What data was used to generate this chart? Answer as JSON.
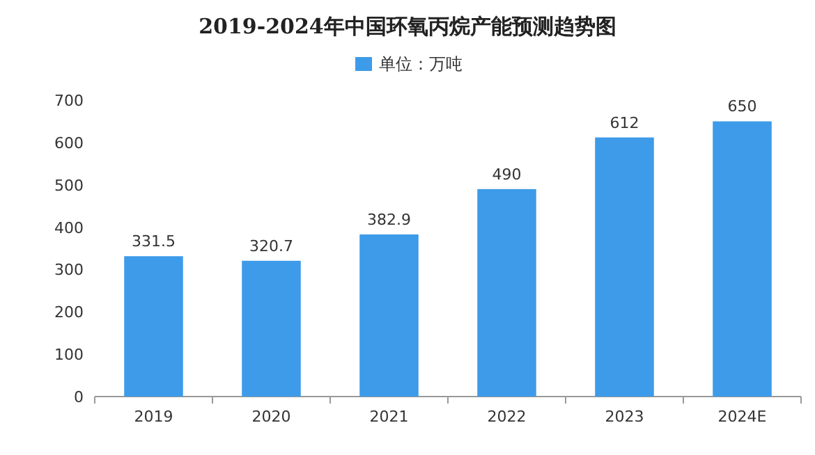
{
  "chart_data": {
    "type": "bar",
    "title": "2019-2024年中国环氧丙烷产能预测趋势图",
    "categories": [
      "2019",
      "2020",
      "2021",
      "2022",
      "2023",
      "2024E"
    ],
    "series": [
      {
        "name": "单位：万吨",
        "color": "#3d9be9",
        "values": [
          331.5,
          320.7,
          382.9,
          490,
          612,
          650
        ]
      }
    ],
    "ylim": [
      0,
      700
    ],
    "yticks": [
      0,
      100,
      200,
      300,
      400,
      500,
      600,
      700
    ],
    "data_labels": true,
    "legend": "top",
    "grid": false
  }
}
